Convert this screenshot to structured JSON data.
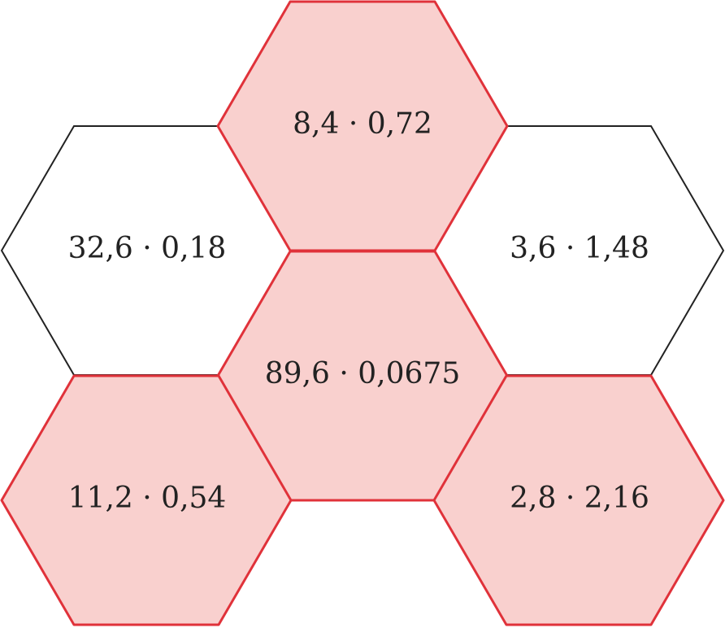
{
  "nodes": [
    {
      "label": "8,4 · 0,72"
    },
    {
      "label": "32,6 · 0,18"
    },
    {
      "label": "3,6 · 1,48"
    },
    {
      "label": "89,6 · 0,0675"
    },
    {
      "label": "11,2 · 0,54"
    },
    {
      "label": "2,8 · 2,16"
    }
  ]
}
